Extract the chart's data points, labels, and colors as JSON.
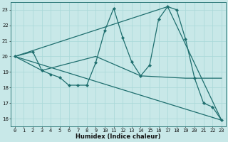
{
  "xlabel": "Humidex (Indice chaleur)",
  "ylabel": "",
  "bg_color": "#c8e8e8",
  "line_color": "#1e6e6e",
  "xlim": [
    -0.5,
    23.5
  ],
  "ylim": [
    15.5,
    23.5
  ],
  "yticks": [
    16,
    17,
    18,
    19,
    20,
    21,
    22,
    23
  ],
  "xticks": [
    0,
    1,
    2,
    3,
    4,
    5,
    6,
    7,
    8,
    9,
    10,
    11,
    12,
    13,
    14,
    15,
    16,
    17,
    18,
    19,
    20,
    21,
    22,
    23
  ],
  "series": [
    {
      "x": [
        0,
        2,
        3,
        4,
        5,
        6,
        7,
        8,
        9,
        10,
        11,
        12,
        13,
        14,
        15,
        16,
        17,
        18,
        19,
        20,
        21,
        22,
        23
      ],
      "y": [
        20.0,
        20.3,
        19.1,
        18.85,
        18.65,
        18.15,
        18.15,
        18.15,
        19.6,
        21.65,
        23.1,
        21.2,
        19.65,
        18.75,
        19.45,
        22.4,
        23.2,
        23.0,
        21.1,
        18.6,
        17.0,
        16.75,
        15.9
      ],
      "marker": "D",
      "markersize": 2.2,
      "linewidth": 0.9
    },
    {
      "x": [
        0,
        17,
        23
      ],
      "y": [
        20.0,
        23.2,
        15.9
      ],
      "marker": null,
      "markersize": 0,
      "linewidth": 0.9
    },
    {
      "x": [
        0,
        23
      ],
      "y": [
        20.0,
        15.9
      ],
      "marker": null,
      "markersize": 0,
      "linewidth": 0.9
    },
    {
      "comment": "middle line: 0->3->9->14->19->23",
      "x": [
        0,
        3,
        9,
        14,
        19,
        23
      ],
      "y": [
        20.0,
        19.1,
        20.0,
        18.75,
        18.6,
        18.6
      ],
      "marker": null,
      "markersize": 0,
      "linewidth": 0.9
    }
  ],
  "grid_color": "#a8d8d8",
  "tick_fontsize": 5,
  "xlabel_fontsize": 6
}
